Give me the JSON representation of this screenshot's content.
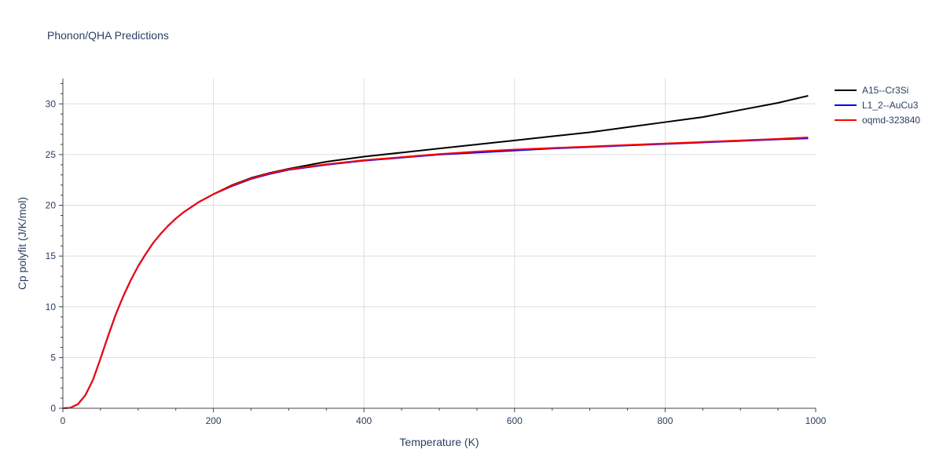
{
  "chart_data": {
    "type": "line",
    "title": "Phonon/QHA Predictions",
    "xlabel": "Temperature (K)",
    "ylabel": "Cp polyfit (J/K/mol)",
    "xlim": [
      0,
      1000
    ],
    "ylim": [
      0,
      32.5
    ],
    "xticks": [
      0,
      200,
      400,
      600,
      800,
      1000
    ],
    "yticks": [
      0,
      5,
      10,
      15,
      20,
      25,
      30
    ],
    "grid": true,
    "legend_position": "top-right",
    "series": [
      {
        "name": "A15--Cr3Si",
        "color": "#000000",
        "x": [
          0,
          10,
          20,
          30,
          40,
          50,
          60,
          70,
          80,
          90,
          100,
          110,
          120,
          130,
          140,
          150,
          160,
          170,
          180,
          190,
          200,
          225,
          250,
          275,
          300,
          350,
          400,
          450,
          500,
          550,
          600,
          650,
          700,
          750,
          800,
          850,
          900,
          950,
          990
        ],
        "y": [
          0,
          0.05,
          0.4,
          1.3,
          2.8,
          4.9,
          7.1,
          9.2,
          11.0,
          12.6,
          14.0,
          15.2,
          16.3,
          17.2,
          18.0,
          18.7,
          19.3,
          19.8,
          20.3,
          20.7,
          21.1,
          22.0,
          22.7,
          23.2,
          23.6,
          24.3,
          24.8,
          25.2,
          25.6,
          26.0,
          26.4,
          26.8,
          27.2,
          27.7,
          28.2,
          28.7,
          29.4,
          30.1,
          30.8
        ]
      },
      {
        "name": "L1_2--AuCu3",
        "color": "#0000ff",
        "x": [
          0,
          10,
          20,
          30,
          40,
          50,
          60,
          70,
          80,
          90,
          100,
          110,
          120,
          130,
          140,
          150,
          160,
          170,
          180,
          190,
          200,
          225,
          250,
          275,
          300,
          350,
          400,
          450,
          500,
          550,
          600,
          650,
          700,
          750,
          800,
          850,
          900,
          950,
          990
        ],
        "y": [
          0,
          0.05,
          0.4,
          1.3,
          2.8,
          4.9,
          7.1,
          9.2,
          11.0,
          12.6,
          14.0,
          15.2,
          16.3,
          17.2,
          18.0,
          18.7,
          19.3,
          19.8,
          20.3,
          20.7,
          21.1,
          21.9,
          22.6,
          23.1,
          23.5,
          24.0,
          24.4,
          24.7,
          25.0,
          25.2,
          25.4,
          25.6,
          25.75,
          25.9,
          26.05,
          26.2,
          26.35,
          26.5,
          26.6
        ]
      },
      {
        "name": "oqmd-323840",
        "color": "#ff0000",
        "x": [
          0,
          10,
          20,
          30,
          40,
          50,
          60,
          70,
          80,
          90,
          100,
          110,
          120,
          130,
          140,
          150,
          160,
          170,
          180,
          190,
          200,
          225,
          250,
          275,
          300,
          350,
          400,
          450,
          500,
          550,
          600,
          650,
          700,
          750,
          800,
          850,
          900,
          950,
          990
        ],
        "y": [
          0,
          0.05,
          0.4,
          1.3,
          2.8,
          4.9,
          7.1,
          9.2,
          11.0,
          12.6,
          14.0,
          15.2,
          16.3,
          17.2,
          18.0,
          18.7,
          19.3,
          19.8,
          20.3,
          20.7,
          21.1,
          21.95,
          22.65,
          23.15,
          23.55,
          24.05,
          24.45,
          24.75,
          25.05,
          25.3,
          25.5,
          25.65,
          25.8,
          25.95,
          26.1,
          26.25,
          26.4,
          26.55,
          26.7
        ]
      }
    ]
  }
}
